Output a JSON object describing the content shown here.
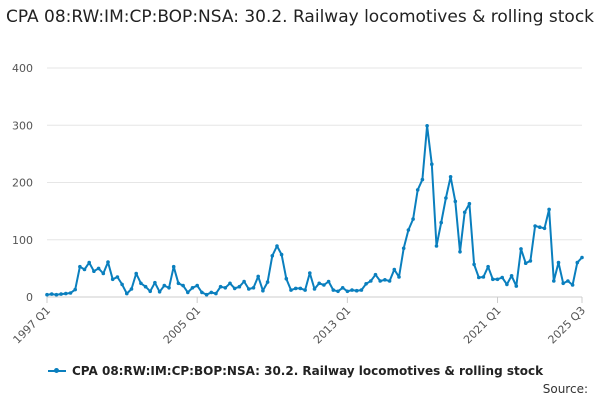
{
  "chart_data": {
    "type": "line",
    "title": "CPA 08:RW:IM:CP:BOP:NSA: 30.2. Railway locomotives & rolling stock",
    "xlabel": "",
    "ylabel": "",
    "ylim": [
      0,
      400
    ],
    "yticks": [
      0,
      100,
      200,
      300,
      400
    ],
    "x_tick_labels": [
      {
        "index": 0,
        "label": "1997 Q1"
      },
      {
        "index": 32,
        "label": "2005 Q1"
      },
      {
        "index": 64,
        "label": "2013 Q1"
      },
      {
        "index": 96,
        "label": "2021 Q1"
      },
      {
        "index": 114,
        "label": "2025 Q3"
      }
    ],
    "series": [
      {
        "name": "CPA 08:RW:IM:CP:BOP:NSA: 30.2. Railway locomotives & rolling stock",
        "color": "#0a7fbe",
        "values": [
          4,
          5,
          4,
          5,
          6,
          7,
          13,
          53,
          48,
          60,
          45,
          50,
          41,
          61,
          31,
          35,
          22,
          6,
          14,
          41,
          24,
          18,
          10,
          25,
          9,
          20,
          16,
          53,
          24,
          20,
          8,
          16,
          20,
          8,
          4,
          8,
          6,
          18,
          16,
          24,
          15,
          18,
          27,
          14,
          16,
          36,
          11,
          26,
          72,
          89,
          74,
          32,
          12,
          15,
          15,
          12,
          42,
          14,
          24,
          21,
          27,
          12,
          10,
          16,
          10,
          12,
          11,
          12,
          23,
          28,
          39,
          28,
          30,
          28,
          48,
          35,
          85,
          117,
          136,
          187,
          205,
          299,
          232,
          89,
          130,
          173,
          210,
          167,
          79,
          148,
          163,
          57,
          34,
          35,
          53,
          31,
          31,
          34,
          22,
          37,
          19,
          84,
          59,
          63,
          124,
          122,
          120,
          153,
          28,
          60,
          24,
          28,
          21,
          60,
          69
        ]
      }
    ]
  },
  "legend": {
    "label": "CPA 08:RW:IM:CP:BOP:NSA: 30.2. Railway locomotives & rolling stock"
  },
  "footer": {
    "source": "Source:"
  }
}
